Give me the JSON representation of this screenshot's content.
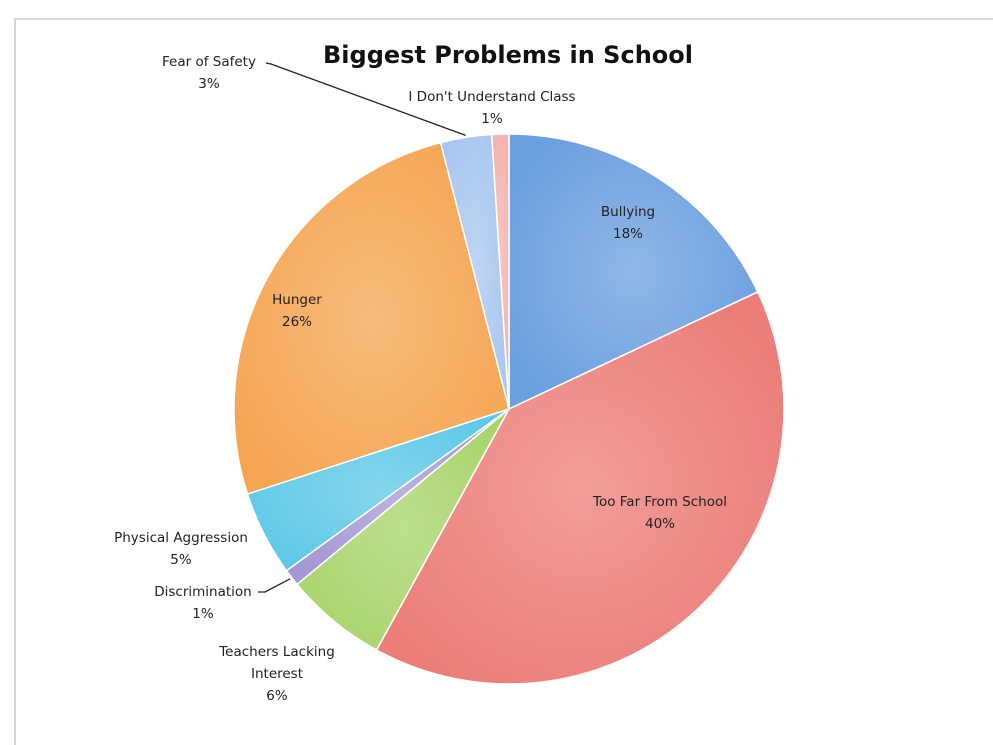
{
  "chart_data": {
    "type": "pie",
    "title": "Biggest Problems in School",
    "slices": [
      {
        "label": "Bullying",
        "value": 18,
        "value_label": "18%",
        "color": "#6b9fe0"
      },
      {
        "label": "Too Far From School",
        "value": 40,
        "value_label": "40%",
        "color": "#ec7d78"
      },
      {
        "label": "Teachers Lacking Interest",
        "value": 6,
        "value_label": "6%",
        "color": "#a9d46a"
      },
      {
        "label": "Discrimination",
        "value": 1,
        "value_label": "1%",
        "color": "#a597d4"
      },
      {
        "label": "Physical Aggression",
        "value": 5,
        "value_label": "5%",
        "color": "#5cc8e6"
      },
      {
        "label": "Hunger",
        "value": 26,
        "value_label": "26%",
        "color": "#f5a552"
      },
      {
        "label": "Fear of Safety",
        "value": 3,
        "value_label": "3%",
        "color": "#a8c7f0"
      },
      {
        "label": "I Don't Understand Class",
        "value": 1,
        "value_label": "1%",
        "color": "#f4b3b0"
      }
    ]
  }
}
